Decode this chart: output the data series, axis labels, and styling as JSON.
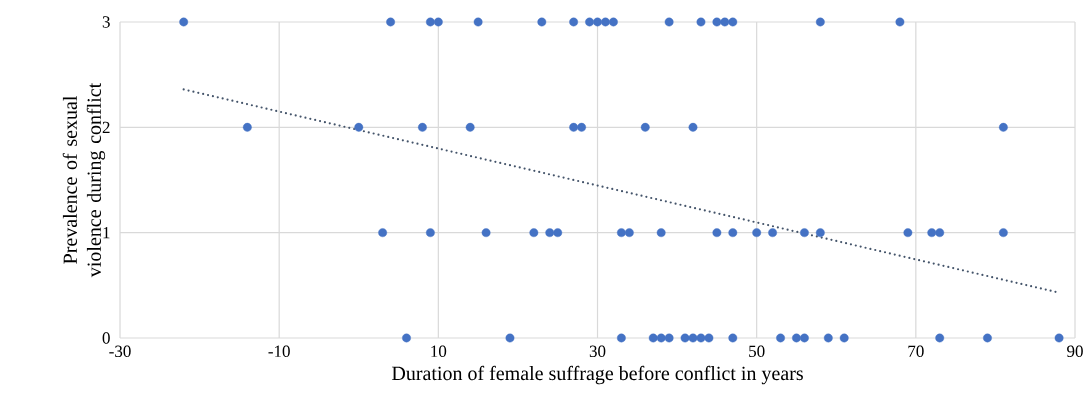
{
  "chart_data": {
    "type": "scatter",
    "xlabel": "Duration of female suffrage before conflict in years",
    "ylabel": "Prevalence of sexual violence during conflict",
    "xlim": [
      -30,
      90
    ],
    "ylim": [
      0,
      3
    ],
    "xticks": [
      -30,
      -10,
      10,
      30,
      50,
      70,
      90
    ],
    "yticks": [
      0,
      1,
      2,
      3
    ],
    "grid": true,
    "marker": "circle",
    "series": [
      {
        "color": "#4472c4",
        "x": [
          -22,
          4,
          9,
          10,
          15,
          23,
          27,
          29,
          30,
          31,
          32,
          39,
          43,
          45,
          46,
          47,
          58,
          68,
          -14,
          0,
          8,
          14,
          27,
          28,
          36,
          42,
          81,
          3,
          9,
          16,
          22,
          24,
          25,
          33,
          34,
          38,
          45,
          47,
          50,
          52,
          56,
          58,
          69,
          72,
          73,
          81,
          6,
          19,
          33,
          37,
          38,
          39,
          41,
          42,
          43,
          44,
          47,
          53,
          55,
          56,
          59,
          61,
          73,
          79,
          88
        ],
        "values": [
          3,
          3,
          3,
          3,
          3,
          3,
          3,
          3,
          3,
          3,
          3,
          3,
          3,
          3,
          3,
          3,
          3,
          3,
          2,
          2,
          2,
          2,
          2,
          2,
          2,
          2,
          2,
          1,
          1,
          1,
          1,
          1,
          1,
          1,
          1,
          1,
          1,
          1,
          1,
          1,
          1,
          1,
          1,
          1,
          1,
          1,
          0,
          0,
          0,
          0,
          0,
          0,
          0,
          0,
          0,
          0,
          0,
          0,
          0,
          0,
          0,
          0,
          0,
          0,
          0
        ]
      },
      {
        "type": "line",
        "color": "#44546a",
        "marker": "none",
        "line_style": "dotted",
        "x": [
          -22,
          88
        ],
        "values": [
          2.36,
          0.43
        ]
      }
    ]
  }
}
